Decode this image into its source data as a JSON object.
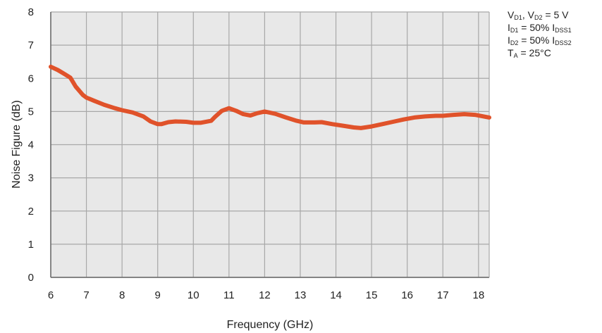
{
  "chart_data": {
    "type": "line",
    "xlabel": "Frequency (GHz)",
    "ylabel": "Noise Figure (dB)",
    "xlim": [
      6,
      18.3
    ],
    "ylim": [
      0,
      8
    ],
    "x_ticks": [
      6,
      7,
      8,
      9,
      10,
      11,
      12,
      13,
      14,
      15,
      16,
      17,
      18
    ],
    "y_ticks": [
      0,
      1,
      2,
      3,
      4,
      5,
      6,
      7,
      8
    ],
    "grid": true,
    "colors": {
      "series": "#e0522a",
      "grid": "#a8a8a8",
      "plot_bg": "#e8e8e8",
      "axis": "#666666"
    },
    "series": [
      {
        "x": [
          6.0,
          6.2,
          6.4,
          6.55,
          6.7,
          6.9,
          7.0,
          7.2,
          7.5,
          7.8,
          8.0,
          8.3,
          8.6,
          8.8,
          9.0,
          9.1,
          9.3,
          9.5,
          9.8,
          10.0,
          10.2,
          10.5,
          10.6,
          10.8,
          11.0,
          11.2,
          11.4,
          11.6,
          11.8,
          12.0,
          12.3,
          12.6,
          12.9,
          13.1,
          13.4,
          13.6,
          13.9,
          14.2,
          14.5,
          14.7,
          15.0,
          15.3,
          15.6,
          15.9,
          16.2,
          16.5,
          16.8,
          17.0,
          17.3,
          17.6,
          17.9,
          18.3
        ],
        "y": [
          6.35,
          6.25,
          6.12,
          6.02,
          5.75,
          5.5,
          5.42,
          5.33,
          5.2,
          5.1,
          5.04,
          4.97,
          4.85,
          4.7,
          4.62,
          4.62,
          4.68,
          4.7,
          4.69,
          4.66,
          4.66,
          4.72,
          4.83,
          5.02,
          5.1,
          5.02,
          4.92,
          4.88,
          4.95,
          5.0,
          4.93,
          4.82,
          4.72,
          4.67,
          4.67,
          4.68,
          4.62,
          4.57,
          4.52,
          4.5,
          4.55,
          4.62,
          4.69,
          4.76,
          4.82,
          4.85,
          4.87,
          4.87,
          4.9,
          4.92,
          4.9,
          4.82
        ]
      }
    ]
  },
  "legend": {
    "line1": {
      "a": "V",
      "a_sub": "D1",
      "b": ", V",
      "b_sub": "D2",
      "c": " = 5 V"
    },
    "line2": {
      "a": "I",
      "a_sub": "D1",
      "b": " = 50% I",
      "b_sub": "DSS1"
    },
    "line3": {
      "a": "I",
      "a_sub": "D2",
      "b": " = 50% I",
      "b_sub": "DSS2"
    },
    "line4": {
      "a": "T",
      "a_sub": "A",
      "b": " = 25°C"
    }
  }
}
